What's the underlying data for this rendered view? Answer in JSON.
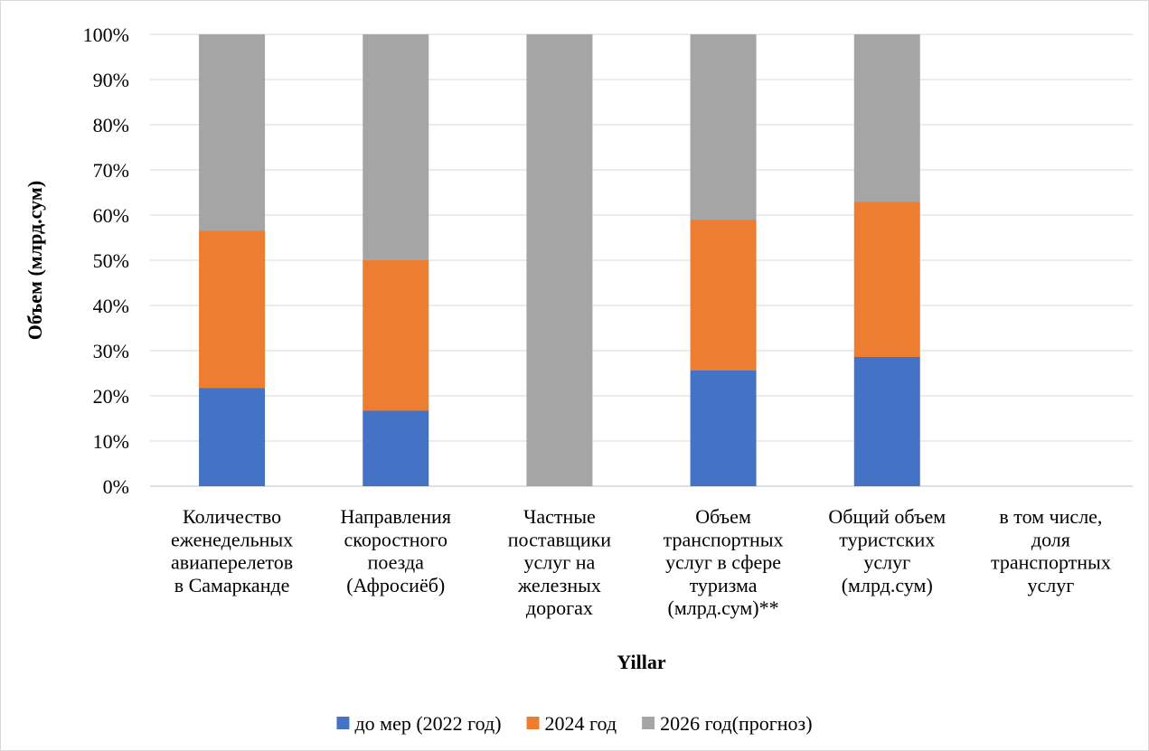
{
  "chart_data": {
    "type": "bar",
    "stacked": true,
    "normalized": true,
    "title": "",
    "xlabel": "Yillar",
    "ylabel": "Объем (млрд.сум)",
    "ylim": [
      0,
      100
    ],
    "y_ticks": [
      "0%",
      "10%",
      "20%",
      "30%",
      "40%",
      "50%",
      "60%",
      "70%",
      "80%",
      "90%",
      "100%"
    ],
    "grid": true,
    "legend_position": "bottom",
    "categories": [
      [
        "Количество",
        "еженедельных",
        "авиаперелетов",
        "в Самарканде"
      ],
      [
        "Направления",
        "скоростного",
        "поезда",
        "(Афросиёб)"
      ],
      [
        "Частные",
        "поставщики",
        "услуг на",
        "железных",
        "дорогах"
      ],
      [
        "Объем",
        "транспортных",
        "услуг в сфере",
        "туризма",
        "(млрд.сум)**"
      ],
      [
        "Общий объем",
        "туристских",
        "услуг",
        "(млрд.сум)"
      ],
      [
        "в том числе,",
        "доля",
        "транспортных",
        "услуг"
      ]
    ],
    "series": [
      {
        "name": "до мер (2022 год)",
        "color": "#4472c4",
        "values": [
          21.7,
          16.7,
          0,
          25.6,
          28.6,
          0
        ]
      },
      {
        "name": "2024 год",
        "color": "#ed7d31",
        "values": [
          34.8,
          33.3,
          0,
          33.3,
          34.3,
          0
        ]
      },
      {
        "name": "2026 год(прогноз)",
        "color": "#a5a5a5",
        "values": [
          43.5,
          50.0,
          100,
          41.1,
          37.1,
          0
        ]
      }
    ]
  }
}
